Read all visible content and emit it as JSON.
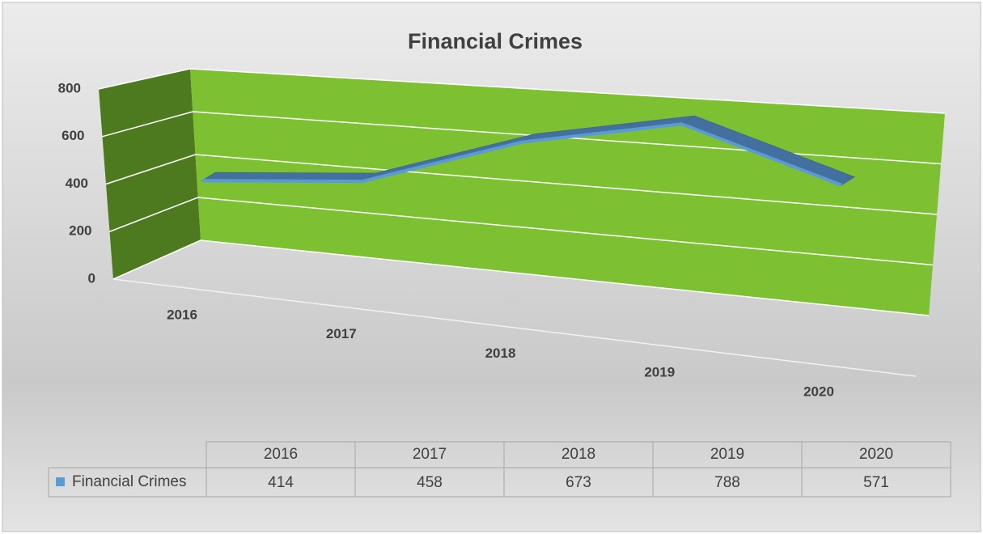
{
  "chart_data": {
    "type": "line3d",
    "title": "Financial Crimes",
    "categories": [
      "2016",
      "2017",
      "2018",
      "2019",
      "2020"
    ],
    "series": [
      {
        "name": "Financial Crimes",
        "color": "#5b9bd5",
        "values": [
          414,
          458,
          673,
          788,
          571
        ]
      }
    ],
    "ylim": [
      0,
      800
    ],
    "yticks": [
      0,
      200,
      400,
      600,
      800
    ],
    "grid": true,
    "data_table": true
  }
}
